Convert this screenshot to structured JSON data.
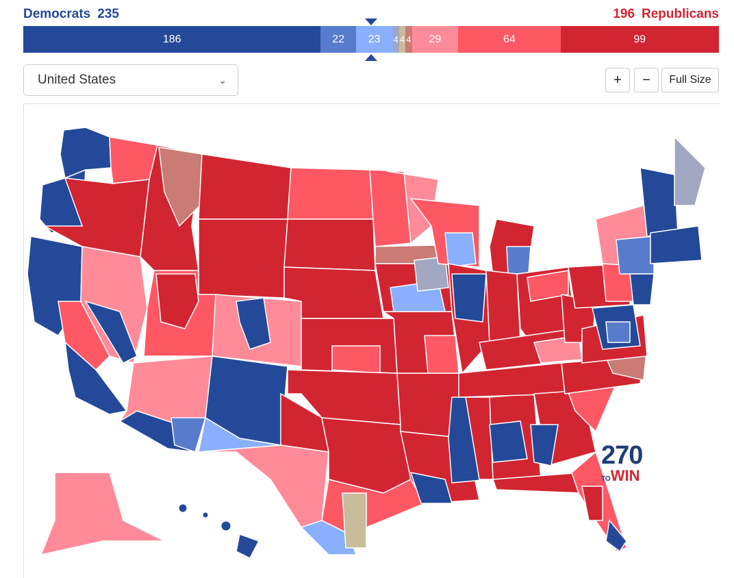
{
  "header": {
    "dem_label": "Democrats",
    "dem_total": "235",
    "rep_total": "196",
    "rep_label": "Republicans"
  },
  "tally_bar": [
    {
      "label": "186",
      "value": 186,
      "color": "#244999"
    },
    {
      "label": "22",
      "value": 22,
      "color": "#577ccc"
    },
    {
      "label": "23",
      "value": 23,
      "color": "#8aafff"
    },
    {
      "label": "4",
      "value": 4,
      "color": "#a2a7c2"
    },
    {
      "label": "4",
      "value": 4,
      "color": "#c9bc9b"
    },
    {
      "label": "4",
      "value": 4,
      "color": "#c97b74"
    },
    {
      "label": "29",
      "value": 29,
      "color": "#ff8b98"
    },
    {
      "label": "64",
      "value": 64,
      "color": "#ff5865"
    },
    {
      "label": "99",
      "value": 99,
      "color": "#d22532"
    }
  ],
  "controls": {
    "region_select": "United States",
    "zoom_in": "+",
    "zoom_out": "−",
    "full_size": "Full Size"
  },
  "logo": {
    "top": "270",
    "bottom": "WIN",
    "side": "TO"
  },
  "colors": {
    "safe_d": "#244999",
    "likely_d": "#577ccc",
    "lean_d": "#8aafff",
    "tossup_d": "#a2a7c2",
    "tossup": "#c9bc9b",
    "tossup_r": "#c97b74",
    "lean_r": "#ff8b98",
    "likely_r": "#ff5865",
    "safe_r": "#d22532"
  }
}
